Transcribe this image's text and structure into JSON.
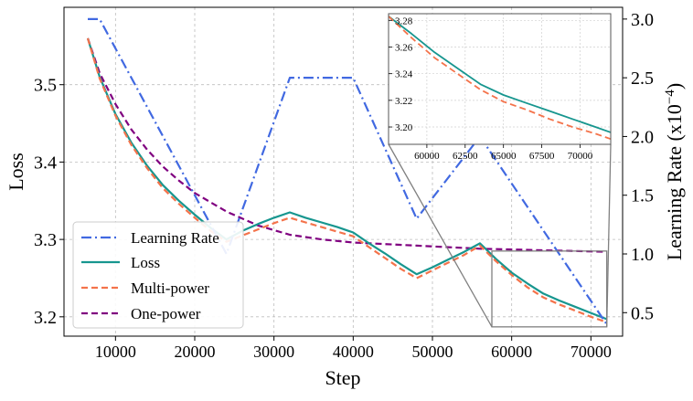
{
  "chart_data": {
    "type": "line",
    "xlabel": "Step",
    "ylabel_left": "Loss",
    "ylabel_right_main": "Learning Rate (x10",
    "ylabel_right_exp": "−4",
    "ylabel_right_tail": ")",
    "xlim": [
      3500,
      74000
    ],
    "ylim_left": [
      3.175,
      3.6
    ],
    "ylim_right": [
      0.3,
      3.1
    ],
    "xticks": [
      10000,
      20000,
      30000,
      40000,
      50000,
      60000,
      70000
    ],
    "yticks_left": [
      3.2,
      3.3,
      3.4,
      3.5
    ],
    "yticks_right": [
      0.5,
      1.0,
      1.5,
      2.0,
      2.5,
      3.0
    ],
    "grid": true,
    "legend_position": "lower-left",
    "series": [
      {
        "name": "Learning Rate",
        "axis": "right",
        "color": "#4169E1",
        "style": "dashdot",
        "x": [
          6500,
          8000,
          24000,
          32000,
          40000,
          48000,
          56000,
          64000,
          72000
        ],
        "y": [
          3.0,
          3.0,
          1.0,
          2.5,
          2.5,
          1.3,
          2.0,
          1.2,
          0.4
        ]
      },
      {
        "name": "Loss",
        "axis": "left",
        "color": "#17968f",
        "style": "solid",
        "x": [
          6500,
          8000,
          10000,
          12000,
          14000,
          16000,
          18000,
          20000,
          22000,
          24000,
          26000,
          28000,
          30000,
          32000,
          34000,
          36000,
          38000,
          40000,
          42000,
          44000,
          46000,
          48000,
          50000,
          52000,
          54000,
          56000,
          58000,
          60000,
          62000,
          64000,
          66000,
          68000,
          70000,
          72000
        ],
        "y": [
          3.56,
          3.51,
          3.462,
          3.425,
          3.395,
          3.37,
          3.35,
          3.332,
          3.315,
          3.3,
          3.311,
          3.32,
          3.328,
          3.335,
          3.328,
          3.322,
          3.316,
          3.309,
          3.295,
          3.282,
          3.268,
          3.255,
          3.264,
          3.274,
          3.284,
          3.295,
          3.275,
          3.257,
          3.243,
          3.23,
          3.221,
          3.213,
          3.205,
          3.197
        ]
      },
      {
        "name": "Multi-power",
        "axis": "left",
        "color": "#F4734B",
        "style": "dashed",
        "x": [
          6500,
          8000,
          10000,
          12000,
          14000,
          16000,
          18000,
          20000,
          22000,
          24000,
          26000,
          28000,
          30000,
          32000,
          34000,
          36000,
          38000,
          40000,
          42000,
          44000,
          46000,
          48000,
          50000,
          52000,
          54000,
          56000,
          58000,
          60000,
          62000,
          64000,
          66000,
          68000,
          70000,
          72000
        ],
        "y": [
          3.56,
          3.508,
          3.46,
          3.422,
          3.392,
          3.366,
          3.346,
          3.328,
          3.311,
          3.297,
          3.305,
          3.313,
          3.321,
          3.328,
          3.322,
          3.316,
          3.31,
          3.304,
          3.29,
          3.276,
          3.262,
          3.25,
          3.26,
          3.27,
          3.28,
          3.292,
          3.272,
          3.254,
          3.238,
          3.225,
          3.216,
          3.208,
          3.2,
          3.193
        ]
      },
      {
        "name": "One-power",
        "axis": "left",
        "color": "#800080",
        "style": "dashed",
        "x": [
          6500,
          8000,
          10000,
          12000,
          14000,
          16000,
          18000,
          20000,
          24000,
          28000,
          32000,
          36000,
          40000,
          44000,
          48000,
          52000,
          56000,
          60000,
          64000,
          68000,
          72000
        ],
        "y": [
          3.56,
          3.515,
          3.475,
          3.442,
          3.416,
          3.394,
          3.376,
          3.36,
          3.336,
          3.318,
          3.306,
          3.3,
          3.296,
          3.294,
          3.292,
          3.29,
          3.288,
          3.287,
          3.286,
          3.285,
          3.284
        ]
      }
    ],
    "inset": {
      "xlim": [
        57500,
        72000
      ],
      "ylim": [
        3.187,
        3.285
      ],
      "xticks": [
        60000,
        62500,
        65000,
        67500,
        70000
      ],
      "yticks": [
        3.2,
        3.22,
        3.24,
        3.26,
        3.28
      ],
      "series": [
        {
          "name": "Loss",
          "color": "#17968f",
          "style": "solid",
          "x": [
            57500,
            59000,
            60500,
            62000,
            63500,
            65000,
            66500,
            68000,
            69500,
            71000,
            72000
          ],
          "y": [
            3.283,
            3.27,
            3.256,
            3.244,
            3.232,
            3.224,
            3.218,
            3.212,
            3.206,
            3.2,
            3.196
          ]
        },
        {
          "name": "Multi-power",
          "color": "#F4734B",
          "style": "dashed",
          "x": [
            57500,
            59000,
            60500,
            62000,
            63500,
            65000,
            66500,
            68000,
            69500,
            71000,
            72000
          ],
          "y": [
            3.283,
            3.267,
            3.252,
            3.24,
            3.228,
            3.219,
            3.213,
            3.206,
            3.2,
            3.195,
            3.191
          ]
        }
      ],
      "label_decimals_x": 0,
      "label_decimals_y": 2
    }
  }
}
